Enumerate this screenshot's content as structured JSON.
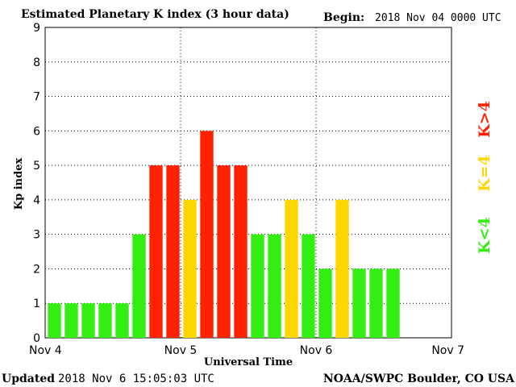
{
  "header": {
    "title": "Estimated Planetary K index (3 hour data)",
    "begin_label": "Begin:",
    "begin_value": "2018 Nov 04 0000 UTC"
  },
  "footer": {
    "updated_label": "Updated",
    "updated_value": "2018 Nov  6 15:05:03 UTC",
    "source": "NOAA/SWPC Boulder, CO USA"
  },
  "legend": [
    {
      "label": "K>4",
      "color": "#ff2200"
    },
    {
      "label": "K=4",
      "color": "#ffd700"
    },
    {
      "label": "K<4",
      "color": "#33ee11"
    }
  ],
  "chart_data": {
    "type": "bar",
    "title": "Estimated Planetary K index (3 hour data)",
    "xlabel": "Universal Time",
    "ylabel": "Kp index",
    "ylim": [
      0,
      9
    ],
    "yticks": [
      "0",
      "1",
      "2",
      "3",
      "4",
      "5",
      "6",
      "7",
      "8",
      "9"
    ],
    "xticks": [
      "Nov 4",
      "Nov 5",
      "Nov 6",
      "Nov 7"
    ],
    "interval_hours": 3,
    "values": [
      1,
      1,
      1,
      1,
      1,
      3,
      5,
      5,
      4,
      6,
      5,
      5,
      3,
      3,
      4,
      3,
      2,
      4,
      2,
      2,
      2
    ],
    "colors": {
      "below": "#33ee11",
      "equal": "#ffd700",
      "above": "#ff2200"
    },
    "grid": true
  }
}
